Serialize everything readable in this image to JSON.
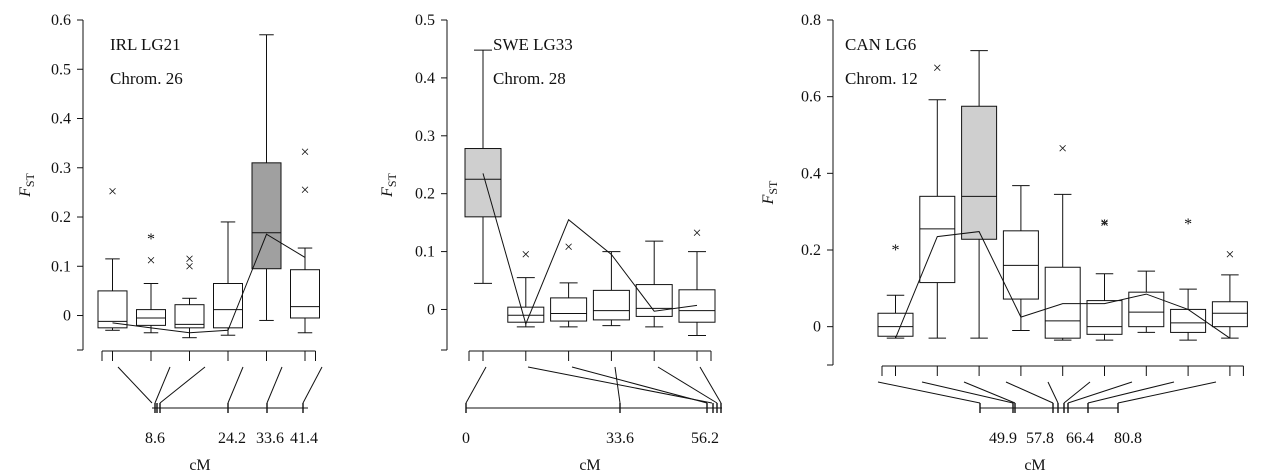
{
  "chart_data": [
    {
      "type": "box",
      "panel": "IRL",
      "annotations": [
        "IRL LG21",
        "Chrom. 26"
      ],
      "ylabel": "F",
      "ylabel_sub": "ST",
      "xlabel": "cM",
      "ylim": [
        -0.07,
        0.6
      ],
      "yticks": [
        0,
        0.1,
        0.2,
        0.3,
        0.4,
        0.5,
        0.6
      ],
      "ytick_labels": [
        "0",
        "0.1",
        "0.2",
        "0.3",
        "0.4",
        "0.5",
        "0.6"
      ],
      "boxes": [
        {
          "min": -0.03,
          "q1": -0.025,
          "median": -0.012,
          "q3": 0.05,
          "max": 0.115,
          "fill": "#ffffff",
          "outliers": [
            {
              "y": 0.252,
              "marker": "×"
            }
          ]
        },
        {
          "min": -0.035,
          "q1": -0.02,
          "median": -0.005,
          "q3": 0.012,
          "max": 0.065,
          "fill": "#ffffff",
          "outliers": [
            {
              "y": 0.112,
              "marker": "×"
            },
            {
              "y": 0.155,
              "marker": "*"
            }
          ]
        },
        {
          "min": -0.045,
          "q1": -0.025,
          "median": -0.018,
          "q3": 0.022,
          "max": 0.035,
          "fill": "#ffffff",
          "outliers": [
            {
              "y": 0.1,
              "marker": "×"
            },
            {
              "y": 0.115,
              "marker": "×"
            }
          ]
        },
        {
          "min": -0.04,
          "q1": -0.025,
          "median": 0.012,
          "q3": 0.065,
          "max": 0.19,
          "fill": "#ffffff",
          "outliers": []
        },
        {
          "min": -0.01,
          "q1": 0.095,
          "median": 0.168,
          "q3": 0.31,
          "max": 0.57,
          "fill": "#a0a0a0",
          "outliers": []
        },
        {
          "min": -0.035,
          "q1": -0.005,
          "median": 0.018,
          "q3": 0.093,
          "max": 0.137,
          "fill": "#ffffff",
          "outliers": [
            {
              "y": 0.255,
              "marker": "×"
            },
            {
              "y": 0.332,
              "marker": "×"
            }
          ]
        }
      ],
      "mean_line": [
        -0.015,
        -0.025,
        -0.035,
        -0.03,
        0.165,
        0.118
      ],
      "cm_ticks": [
        "8.6",
        "24.2",
        "33.6",
        "41.4"
      ]
    },
    {
      "type": "box",
      "panel": "SWE",
      "annotations": [
        "SWE LG33",
        "Chrom. 28"
      ],
      "ylabel": "F",
      "ylabel_sub": "ST",
      "xlabel": "cM",
      "ylim": [
        -0.07,
        0.5
      ],
      "yticks": [
        0,
        0.1,
        0.2,
        0.3,
        0.4,
        0.5
      ],
      "ytick_labels": [
        "0",
        "0.1",
        "0.2",
        "0.3",
        "0.4",
        "0.5"
      ],
      "boxes": [
        {
          "min": 0.045,
          "q1": 0.16,
          "median": 0.225,
          "q3": 0.278,
          "max": 0.448,
          "fill": "#cfcfcf",
          "outliers": []
        },
        {
          "min": -0.03,
          "q1": -0.022,
          "median": -0.01,
          "q3": 0.004,
          "max": 0.055,
          "fill": "#ffffff",
          "outliers": [
            {
              "y": 0.095,
              "marker": "×"
            }
          ]
        },
        {
          "min": -0.03,
          "q1": -0.02,
          "median": -0.007,
          "q3": 0.02,
          "max": 0.046,
          "fill": "#ffffff",
          "outliers": [
            {
              "y": 0.108,
              "marker": "×"
            }
          ]
        },
        {
          "min": -0.028,
          "q1": -0.018,
          "median": -0.002,
          "q3": 0.033,
          "max": 0.1,
          "fill": "#ffffff",
          "outliers": []
        },
        {
          "min": -0.03,
          "q1": -0.012,
          "median": 0.002,
          "q3": 0.043,
          "max": 0.118,
          "fill": "#ffffff",
          "outliers": []
        },
        {
          "min": -0.045,
          "q1": -0.022,
          "median": -0.002,
          "q3": 0.034,
          "max": 0.1,
          "fill": "#ffffff",
          "outliers": [
            {
              "y": 0.132,
              "marker": "×"
            }
          ]
        }
      ],
      "mean_line": [
        0.235,
        -0.025,
        0.155,
        0.095,
        -0.003,
        0.007
      ],
      "cm_ticks": [
        "0",
        "33.6",
        "56.2"
      ]
    },
    {
      "type": "box",
      "panel": "CAN",
      "annotations": [
        "CAN LG6",
        "Chrom. 12"
      ],
      "ylabel": "F",
      "ylabel_sub": "ST",
      "xlabel": "cM",
      "ylim": [
        -0.1,
        0.8
      ],
      "yticks": [
        0,
        0.2,
        0.4,
        0.6,
        0.8
      ],
      "ytick_labels": [
        "0",
        "0.2",
        "0.4",
        "0.6",
        "0.8"
      ],
      "boxes": [
        {
          "min": -0.03,
          "q1": -0.025,
          "median": 0.0,
          "q3": 0.035,
          "max": 0.082,
          "fill": "#ffffff",
          "outliers": [
            {
              "y": 0.2,
              "marker": "*"
            }
          ]
        },
        {
          "min": -0.03,
          "q1": 0.115,
          "median": 0.255,
          "q3": 0.34,
          "max": 0.592,
          "fill": "#ffffff",
          "outliers": [
            {
              "y": 0.675,
              "marker": "×"
            }
          ]
        },
        {
          "min": -0.03,
          "q1": 0.228,
          "median": 0.34,
          "q3": 0.575,
          "max": 0.72,
          "fill": "#cfcfcf",
          "outliers": []
        },
        {
          "min": -0.01,
          "q1": 0.072,
          "median": 0.16,
          "q3": 0.25,
          "max": 0.368,
          "fill": "#ffffff",
          "outliers": []
        },
        {
          "min": -0.035,
          "q1": -0.03,
          "median": 0.015,
          "q3": 0.155,
          "max": 0.345,
          "fill": "#ffffff",
          "outliers": [
            {
              "y": 0.465,
              "marker": "×"
            }
          ]
        },
        {
          "min": -0.035,
          "q1": -0.02,
          "median": 0.0,
          "q3": 0.068,
          "max": 0.138,
          "fill": "#ffffff",
          "outliers": [
            {
              "y": 0.265,
              "marker": "*"
            },
            {
              "y": 0.27,
              "marker": "×"
            }
          ]
        },
        {
          "min": -0.015,
          "q1": 0.0,
          "median": 0.038,
          "q3": 0.09,
          "max": 0.145,
          "fill": "#ffffff",
          "outliers": []
        },
        {
          "min": -0.035,
          "q1": -0.015,
          "median": 0.01,
          "q3": 0.045,
          "max": 0.098,
          "fill": "#ffffff",
          "outliers": [
            {
              "y": 0.268,
              "marker": "*"
            }
          ]
        },
        {
          "min": -0.03,
          "q1": 0.0,
          "median": 0.035,
          "q3": 0.065,
          "max": 0.135,
          "fill": "#ffffff",
          "outliers": [
            {
              "y": 0.188,
              "marker": "×"
            }
          ]
        }
      ],
      "mean_line": [
        -0.03,
        0.235,
        0.248,
        0.025,
        0.06,
        0.06,
        0.085,
        0.045,
        -0.03
      ],
      "cm_ticks": [
        "49.9",
        "57.8",
        "66.4",
        "80.8"
      ]
    }
  ]
}
